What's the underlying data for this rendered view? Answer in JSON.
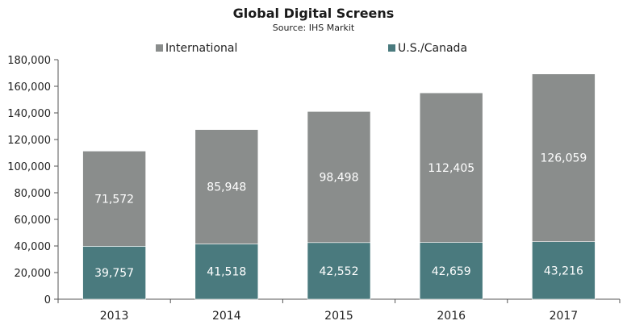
{
  "chart_data": {
    "type": "bar",
    "stacked": true,
    "title": "Global Digital Screens",
    "subtitle": "Source: IHS Markit",
    "categories": [
      "2013",
      "2014",
      "2015",
      "2016",
      "2017"
    ],
    "series": [
      {
        "name": "U.S./Canada",
        "color": "#4a7a7e",
        "values": [
          39757,
          41518,
          42552,
          42659,
          43216
        ],
        "labels": [
          "39,757",
          "41,518",
          "42,552",
          "42,659",
          "43,216"
        ]
      },
      {
        "name": "International",
        "color": "#8a8d8c",
        "values": [
          71572,
          85948,
          98498,
          112405,
          126059
        ],
        "labels": [
          "71,572",
          "85,948",
          "98,498",
          "112,405",
          "126,059"
        ]
      }
    ],
    "legend_order": [
      "International",
      "U.S./Canada"
    ],
    "legend_position": "top",
    "ylim": [
      0,
      180000
    ],
    "yticks": [
      0,
      20000,
      40000,
      60000,
      80000,
      100000,
      120000,
      140000,
      160000,
      180000
    ],
    "ytick_labels": [
      "0",
      "20,000",
      "40,000",
      "60,000",
      "80,000",
      "100,000",
      "120,000",
      "140,000",
      "160,000",
      "180,000"
    ],
    "grid": false,
    "xlabel": "",
    "ylabel": ""
  }
}
